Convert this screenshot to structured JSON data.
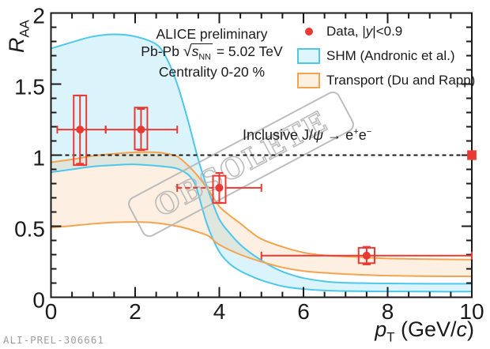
{
  "annotations": {
    "alice": "ALICE preliminary",
    "system_html": "Pb-Pb <span class=\"sq\">√</span><span class=\"ov\"><i>s</i><sub>NN</sub></span> = 5.02 TeV",
    "centrality": "Centrality 0-20 %",
    "inclusive_html": "Inclusive J/<i>ψ</i> → e<sup>+</sup>e<sup>−</sup>"
  },
  "legend": {
    "items": [
      {
        "kind": "marker",
        "label_html": "Data, |<i>y</i>|&lt;0.9"
      },
      {
        "kind": "band-shm",
        "label_html": "SHM (Andronic et al.)"
      },
      {
        "kind": "band-transport",
        "label_html": "Transport (Du and Rapp)"
      }
    ]
  },
  "watermark": {
    "text": "OBSOLETE"
  },
  "footer": {
    "figure_id": "ALI-PREL-306661"
  },
  "colors": {
    "data_red": "#e83a33",
    "shm_stroke": "#4dc7ec",
    "shm_fill": "rgba(125,216,242,0.28)",
    "transport_stroke": "#f4a44f",
    "transport_fill": "rgba(245,166,86,0.18)",
    "axis": "#1a1a1a",
    "watermark_gray": "#b6b6b6",
    "footer_gray": "#9e9e9e"
  },
  "chart_data": {
    "type": "scatter",
    "title": "",
    "xlabel": "pT (GeV/c)",
    "ylabel": "RAA",
    "xlabel_html": "<i>p</i><sub>T</sub> (GeV/<i>c</i>)",
    "ylabel_html": "<i>R</i><sub>AA</sub>",
    "xlim": [
      0,
      10
    ],
    "ylim": [
      0,
      2
    ],
    "x_major_ticks": [
      0,
      2,
      4,
      6,
      8,
      10
    ],
    "x_minor_step": 0.5,
    "y_major_ticks": [
      0,
      0.5,
      1,
      1.5,
      2
    ],
    "y_tick_labels": [
      "0",
      "0.5",
      "1",
      "1.5",
      "2"
    ],
    "y_minor_step": 0.1,
    "grid": false,
    "legend_position": "top-right",
    "reference_line_y": 1,
    "series": [
      {
        "name": "SHM (Andronic et al.)",
        "type": "band",
        "upper": [
          [
            0,
            1.75
          ],
          [
            0.5,
            1.795
          ],
          [
            1,
            1.835
          ],
          [
            1.5,
            1.85
          ],
          [
            2,
            1.835
          ],
          [
            2.5,
            1.78
          ],
          [
            2.75,
            1.68
          ],
          [
            3,
            1.5
          ],
          [
            3.25,
            1.25
          ],
          [
            3.5,
            0.97
          ],
          [
            3.75,
            0.74
          ],
          [
            4,
            0.55
          ],
          [
            4.25,
            0.45
          ],
          [
            4.5,
            0.37
          ],
          [
            4.75,
            0.31
          ],
          [
            5,
            0.26
          ],
          [
            5.25,
            0.215
          ],
          [
            5.5,
            0.18
          ],
          [
            5.75,
            0.155
          ],
          [
            6,
            0.135
          ],
          [
            6.5,
            0.112
          ],
          [
            7,
            0.102
          ],
          [
            8,
            0.097
          ],
          [
            9,
            0.095
          ],
          [
            10,
            0.095
          ]
        ],
        "lower": [
          [
            0,
            0.88
          ],
          [
            0.5,
            0.9
          ],
          [
            1,
            0.92
          ],
          [
            1.5,
            0.93
          ],
          [
            2,
            0.935
          ],
          [
            2.5,
            0.925
          ],
          [
            2.75,
            0.918
          ],
          [
            3,
            0.905
          ],
          [
            3.25,
            0.865
          ],
          [
            3.4,
            0.81
          ],
          [
            3.5,
            0.73
          ],
          [
            3.6,
            0.62
          ],
          [
            3.75,
            0.48
          ],
          [
            4,
            0.32
          ],
          [
            4.25,
            0.235
          ],
          [
            4.5,
            0.185
          ],
          [
            4.75,
            0.15
          ],
          [
            5,
            0.12
          ],
          [
            5.5,
            0.078
          ],
          [
            6,
            0.058
          ],
          [
            6.5,
            0.048
          ],
          [
            7,
            0.044
          ],
          [
            8,
            0.041
          ],
          [
            9,
            0.04
          ],
          [
            10,
            0.04
          ]
        ]
      },
      {
        "name": "Transport (Du and Rapp)",
        "type": "band",
        "upper": [
          [
            0,
            0.95
          ],
          [
            0.5,
            0.97
          ],
          [
            1,
            0.995
          ],
          [
            1.5,
            1.01
          ],
          [
            2,
            1.02
          ],
          [
            2.5,
            1.02
          ],
          [
            2.75,
            1.01
          ],
          [
            3,
            0.99
          ],
          [
            3.25,
            0.93
          ],
          [
            3.5,
            0.85
          ],
          [
            3.75,
            0.75
          ],
          [
            4,
            0.64
          ],
          [
            4.25,
            0.575
          ],
          [
            4.5,
            0.52
          ],
          [
            4.75,
            0.46
          ],
          [
            5,
            0.41
          ],
          [
            5.5,
            0.355
          ],
          [
            6,
            0.315
          ],
          [
            6.5,
            0.295
          ],
          [
            7,
            0.287
          ],
          [
            7.5,
            0.28
          ],
          [
            8,
            0.273
          ],
          [
            9,
            0.268
          ],
          [
            10,
            0.265
          ]
        ],
        "lower": [
          [
            0,
            0.49
          ],
          [
            0.5,
            0.503
          ],
          [
            1,
            0.517
          ],
          [
            1.5,
            0.527
          ],
          [
            2,
            0.53
          ],
          [
            2.5,
            0.523
          ],
          [
            3,
            0.5
          ],
          [
            3.25,
            0.482
          ],
          [
            3.5,
            0.458
          ],
          [
            3.75,
            0.43
          ],
          [
            4,
            0.37
          ],
          [
            4.5,
            0.3
          ],
          [
            5,
            0.25
          ],
          [
            5.5,
            0.21
          ],
          [
            6,
            0.185
          ],
          [
            6.5,
            0.172
          ],
          [
            7,
            0.163
          ],
          [
            7.5,
            0.157
          ],
          [
            8,
            0.152
          ],
          [
            9,
            0.148
          ],
          [
            10,
            0.147
          ]
        ]
      },
      {
        "name": "Data, |y|<0.9",
        "type": "scatter",
        "points": [
          {
            "x": 0.69,
            "y": 1.18,
            "x_low": 0.15,
            "x_high": 1.3,
            "stat": 0.24,
            "sys_half_width": 0.15,
            "sys_low": 0.93,
            "sys_high": 1.42,
            "left_bar_dashed": false
          },
          {
            "x": 2.14,
            "y": 1.18,
            "x_low": 1.3,
            "x_high": 3.0,
            "stat": 0.145,
            "sys_half_width": 0.15,
            "sys_low": 1.04,
            "sys_high": 1.335,
            "left_bar_dashed": false
          },
          {
            "x": 4.0,
            "y": 0.77,
            "x_low": 3.0,
            "x_high": 5.0,
            "stat": 0.105,
            "sys_half_width": 0.15,
            "sys_low": 0.663,
            "sys_high": 0.855,
            "left_bar_dashed": true
          },
          {
            "x": 7.5,
            "y": 0.293,
            "x_low": 5.0,
            "x_high": 10.0,
            "stat": 0.062,
            "sys_half_width": 0.19,
            "sys_low": 0.24,
            "sys_high": 0.348,
            "left_bar_dashed": false
          }
        ]
      }
    ],
    "normalization_uncertainty": {
      "x_center": 10,
      "y_center": 1,
      "half_width": 0.11,
      "half_height": 0.034
    }
  }
}
